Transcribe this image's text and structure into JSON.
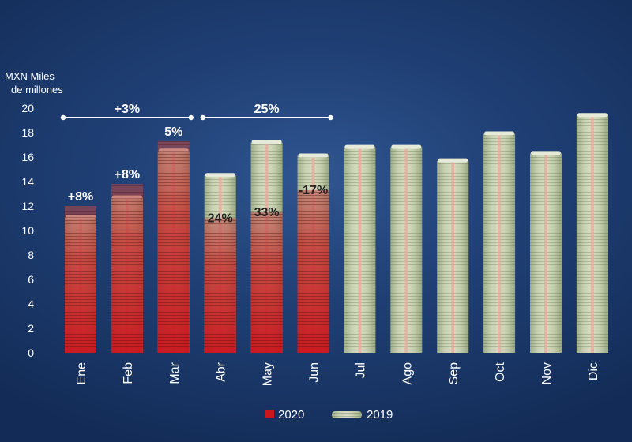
{
  "chart_data": {
    "type": "bar",
    "ylabel_lines": [
      "MXN Miles",
      "de millones"
    ],
    "ylim": [
      0,
      20
    ],
    "yticks": [
      0,
      2,
      4,
      6,
      8,
      10,
      12,
      14,
      16,
      18,
      20
    ],
    "categories": [
      "Ene",
      "Feb",
      "Mar",
      "Abr",
      "May",
      "Jun",
      "Jul",
      "Ago",
      "Sep",
      "Oct",
      "Nov",
      "Dic"
    ],
    "series": [
      {
        "name": "2019",
        "values": [
          11.1,
          12.7,
          16.5,
          14.5,
          17.2,
          16.1,
          16.8,
          16.8,
          15.7,
          17.9,
          16.3,
          19.4
        ]
      },
      {
        "name": "2020",
        "values": [
          12.0,
          13.8,
          17.3,
          11.0,
          11.5,
          13.3,
          null,
          null,
          null,
          null,
          null,
          null
        ]
      }
    ],
    "data_labels": [
      "+8%",
      "+8%",
      "5%",
      "24%",
      "33%",
      "-17%",
      "",
      "",
      "",
      "",
      "",
      ""
    ],
    "brackets": [
      {
        "label": "+3%",
        "from_category": "Ene",
        "to_category": "Mar"
      },
      {
        "label": "25%",
        "from_category": "Abr",
        "to_category": "Jun"
      }
    ],
    "legend": [
      {
        "label": "2020",
        "color": "#c8181e"
      },
      {
        "label": "2019",
        "color": "#c2ccaa"
      }
    ],
    "legend_position": "bottom",
    "grid": false,
    "colors": {
      "series_2020": "#c8181e",
      "series_2019": "#c2ccaa",
      "text": "#ffffff",
      "label_dark": "#222222"
    }
  }
}
